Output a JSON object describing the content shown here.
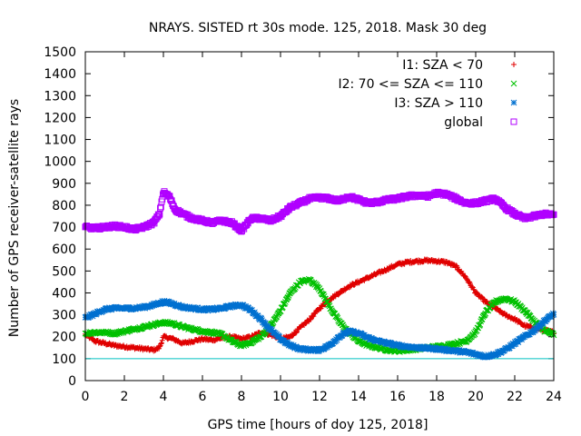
{
  "chart_data": {
    "type": "scatter",
    "title": "NRAYS. SISTED rt 30s mode. 125, 2018. Mask 30 deg",
    "xlabel": "GPS time [hours of doy 125, 2018]",
    "ylabel": "Number of GPS receiver-satellite rays",
    "xlim": [
      0,
      24
    ],
    "ylim": [
      0,
      1500
    ],
    "xticks": [
      0,
      2,
      4,
      6,
      8,
      10,
      12,
      14,
      16,
      18,
      20,
      22,
      24
    ],
    "yticks": [
      0,
      100,
      200,
      300,
      400,
      500,
      600,
      700,
      800,
      900,
      1000,
      1100,
      1200,
      1300,
      1400,
      1500
    ],
    "legend_position": "top-right",
    "reference_line": {
      "y": 100,
      "color": "#00c0c0"
    },
    "series": [
      {
        "name": "I1: SZA < 70",
        "marker": "+",
        "color": "#e00000",
        "x": [
          0,
          0.5,
          1,
          1.5,
          2,
          2.5,
          3,
          3.5,
          3.8,
          4,
          4.5,
          5,
          5.5,
          6,
          6.5,
          7,
          7.5,
          8,
          8.5,
          9,
          9.5,
          10,
          10.5,
          11,
          11.5,
          12,
          12.5,
          13,
          13.5,
          14,
          14.5,
          15,
          15.5,
          16,
          16.5,
          17,
          17.5,
          18,
          18.5,
          19,
          19.5,
          20,
          20.5,
          21,
          21.5,
          22,
          22.5,
          23,
          23.5,
          24
        ],
        "values": [
          210,
          180,
          170,
          160,
          155,
          150,
          145,
          140,
          150,
          200,
          190,
          170,
          180,
          190,
          185,
          195,
          200,
          190,
          200,
          220,
          210,
          190,
          200,
          240,
          280,
          330,
          370,
          400,
          430,
          450,
          470,
          490,
          510,
          530,
          540,
          545,
          548,
          545,
          540,
          520,
          470,
          400,
          360,
          330,
          300,
          280,
          250,
          240,
          230,
          220
        ]
      },
      {
        "name": "I2: 70 <= SZA <= 110",
        "marker": "x",
        "color": "#00c000",
        "x": [
          0,
          0.5,
          1,
          1.5,
          2,
          2.5,
          3,
          3.5,
          4,
          4.5,
          5,
          5.5,
          6,
          6.5,
          7,
          7.5,
          8,
          8.5,
          9,
          9.5,
          10,
          10.5,
          11,
          11.5,
          12,
          12.5,
          13,
          13.5,
          14,
          14.5,
          15,
          15.5,
          16,
          16.5,
          17,
          17.5,
          18,
          18.5,
          19,
          19.5,
          20,
          20.5,
          21,
          21.5,
          22,
          22.5,
          23,
          23.5,
          24
        ],
        "values": [
          215,
          220,
          220,
          215,
          225,
          235,
          245,
          255,
          265,
          260,
          245,
          235,
          225,
          220,
          210,
          180,
          160,
          175,
          200,
          250,
          320,
          400,
          450,
          460,
          420,
          340,
          270,
          220,
          180,
          160,
          150,
          140,
          135,
          140,
          145,
          150,
          155,
          160,
          170,
          180,
          220,
          310,
          360,
          375,
          360,
          320,
          270,
          230,
          210
        ]
      },
      {
        "name": "I3: SZA > 110",
        "marker": "*",
        "color": "#0070d0",
        "x": [
          0,
          0.5,
          1,
          1.5,
          2,
          2.5,
          3,
          3.5,
          4,
          4.5,
          5,
          5.5,
          6,
          6.5,
          7,
          7.5,
          8,
          8.5,
          9,
          9.5,
          10,
          10.5,
          11,
          11.5,
          12,
          12.5,
          13,
          13.5,
          14,
          14.5,
          15,
          15.5,
          16,
          16.5,
          17,
          17.5,
          18,
          18.5,
          19,
          19.5,
          20,
          20.5,
          21,
          21.5,
          22,
          22.5,
          23,
          23.5,
          24
        ],
        "values": [
          285,
          305,
          325,
          330,
          330,
          330,
          335,
          345,
          360,
          350,
          335,
          330,
          325,
          325,
          330,
          340,
          345,
          320,
          280,
          230,
          190,
          160,
          145,
          140,
          140,
          160,
          200,
          225,
          215,
          195,
          180,
          170,
          160,
          155,
          150,
          148,
          145,
          140,
          135,
          130,
          120,
          110,
          120,
          140,
          170,
          200,
          230,
          270,
          305
        ]
      },
      {
        "name": "global",
        "marker": "square",
        "color": "#b000ff",
        "x": [
          0,
          0.5,
          1,
          1.5,
          2,
          2.5,
          3,
          3.5,
          3.8,
          4,
          4.3,
          4.6,
          5,
          5.5,
          6,
          6.5,
          7,
          7.5,
          8,
          8.5,
          9,
          9.5,
          10,
          10.5,
          11,
          11.5,
          12,
          12.5,
          13,
          13.5,
          14,
          14.5,
          15,
          15.5,
          16,
          16.5,
          17,
          17.5,
          18,
          18.5,
          19,
          19.5,
          20,
          20.5,
          21,
          21.5,
          22,
          22.5,
          23,
          23.5,
          24
        ],
        "values": [
          700,
          695,
          700,
          705,
          700,
          690,
          700,
          720,
          760,
          860,
          840,
          780,
          760,
          740,
          730,
          720,
          730,
          720,
          685,
          740,
          740,
          730,
          750,
          790,
          810,
          830,
          835,
          830,
          820,
          840,
          825,
          810,
          815,
          825,
          830,
          840,
          845,
          840,
          855,
          850,
          830,
          810,
          810,
          820,
          830,
          790,
          760,
          740,
          750,
          760,
          755
        ]
      }
    ]
  }
}
